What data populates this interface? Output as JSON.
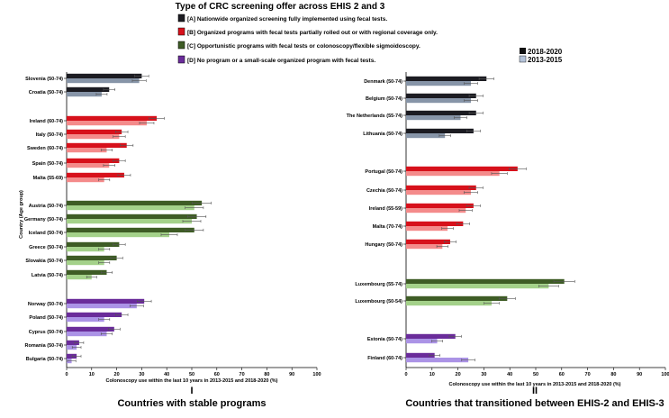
{
  "chart_data": {
    "type": "bar",
    "orientation": "horizontal",
    "title": "Type of CRC screening offer across EHIS 2 and 3",
    "legend_programs": [
      {
        "code": "A",
        "label": "[A] Nationwide organized screening fully implemented using fecal tests.",
        "color": "#1c1c22"
      },
      {
        "code": "B",
        "label": "[B] Organized programs with fecal tests partially rolled out or with regional coverage only.",
        "color": "#d7111b"
      },
      {
        "code": "C",
        "label": "[C] Opportunistic programs with fecal tests or colonoscopy/flexible sigmoidoscopy.",
        "color": "#3e5c25"
      },
      {
        "code": "D",
        "label": "[D] No program or a small-scale organized program with fecal tests.",
        "color": "#6a2c9a"
      }
    ],
    "legend_waves": [
      {
        "label": "2018-2020",
        "color": "#111111"
      },
      {
        "label": "2013-2015",
        "color": "#b4c3d9"
      }
    ],
    "light_colors": {
      "A": "#8795a8",
      "B": "#f48b8b",
      "C": "#a4d18a",
      "D": "#ab93e6"
    },
    "ylabel": "Country (Age group)",
    "xlabel": "Colonoscopy use within the last 10 years in 2013-2015 and 2018-2020 (%)",
    "xlim": [
      0,
      100
    ],
    "xticks": [
      0,
      10,
      20,
      30,
      40,
      50,
      60,
      70,
      80,
      90,
      100
    ],
    "panels": [
      {
        "numeral": "I",
        "subtitle": "Countries with stable programs",
        "rows": [
          {
            "label": "Slovenia (50-74)",
            "group": "A",
            "v2018": 30,
            "v2013": 29
          },
          {
            "label": "Croatia (50-74)",
            "group": "A",
            "v2018": 17,
            "v2013": 14
          },
          {
            "label": "Ireland (60-74)",
            "group": "B",
            "v2018": 36,
            "v2013": 32
          },
          {
            "label": "Italy (50-74)",
            "group": "B",
            "v2018": 22,
            "v2013": 21
          },
          {
            "label": "Sweden (60-74)",
            "group": "B",
            "v2018": 24,
            "v2013": 16
          },
          {
            "label": "Spain (50-74)",
            "group": "B",
            "v2018": 21,
            "v2013": 17
          },
          {
            "label": "Malta (55-69)",
            "group": "B",
            "v2018": 23,
            "v2013": 15
          },
          {
            "label": "Austria (50-74)",
            "group": "C",
            "v2018": 54,
            "v2013": 51
          },
          {
            "label": "Germany (50-74)",
            "group": "C",
            "v2018": 52,
            "v2013": 50
          },
          {
            "label": "Iceland (50-74)",
            "group": "C",
            "v2018": 51,
            "v2013": 41
          },
          {
            "label": "Greece (50-74)",
            "group": "C",
            "v2018": 21,
            "v2013": 15
          },
          {
            "label": "Slovakia (50-74)",
            "group": "C",
            "v2018": 20,
            "v2013": 15
          },
          {
            "label": "Latvia (50-74)",
            "group": "C",
            "v2018": 16,
            "v2013": 10
          },
          {
            "label": "Norway (50-74)",
            "group": "D",
            "v2018": 31,
            "v2013": 28
          },
          {
            "label": "Poland (50-74)",
            "group": "D",
            "v2018": 22,
            "v2013": 15
          },
          {
            "label": "Cyprus (50-74)",
            "group": "D",
            "v2018": 19,
            "v2013": 16
          },
          {
            "label": "Romania (50-74)",
            "group": "D",
            "v2018": 5,
            "v2013": 4
          },
          {
            "label": "Bulgaria (50-74)",
            "group": "D",
            "v2018": 4,
            "v2013": 2
          }
        ]
      },
      {
        "numeral": "II",
        "subtitle": "Countries that transitioned between EHIS-2 and EHIS-3",
        "rows": [
          {
            "label": "Denmark (50-74)",
            "group": "A",
            "v2018": 31,
            "v2013": 25
          },
          {
            "label": "Belgium (50-74)",
            "group": "A",
            "v2018": 27,
            "v2013": 25
          },
          {
            "label": "The Netherlands (55-74)",
            "group": "A",
            "v2018": 27,
            "v2013": 21
          },
          {
            "label": "Lithuania (50-74)",
            "group": "A",
            "v2018": 26,
            "v2013": 15
          },
          {
            "label": "Portugal (50-74)",
            "group": "B",
            "v2018": 43,
            "v2013": 36
          },
          {
            "label": "Czechia (50-74)",
            "group": "B",
            "v2018": 27,
            "v2013": 25
          },
          {
            "label": "Ireland (55-59)",
            "group": "B",
            "v2018": 26,
            "v2013": 23
          },
          {
            "label": "Malta (70-74)",
            "group": "B",
            "v2018": 22,
            "v2013": 16
          },
          {
            "label": "Hungary (50-74)",
            "group": "B",
            "v2018": 17,
            "v2013": 14
          },
          {
            "label": "Luxembourg (55-74)",
            "group": "C",
            "v2018": 61,
            "v2013": 55
          },
          {
            "label": "Luxembourg (50-54)",
            "group": "C",
            "v2018": 39,
            "v2013": 33
          },
          {
            "label": "Estonia (50-74)",
            "group": "D",
            "v2018": 19,
            "v2013": 12
          },
          {
            "label": "Finland (60-74)",
            "group": "D",
            "v2018": 11,
            "v2013": 24
          }
        ]
      }
    ]
  }
}
